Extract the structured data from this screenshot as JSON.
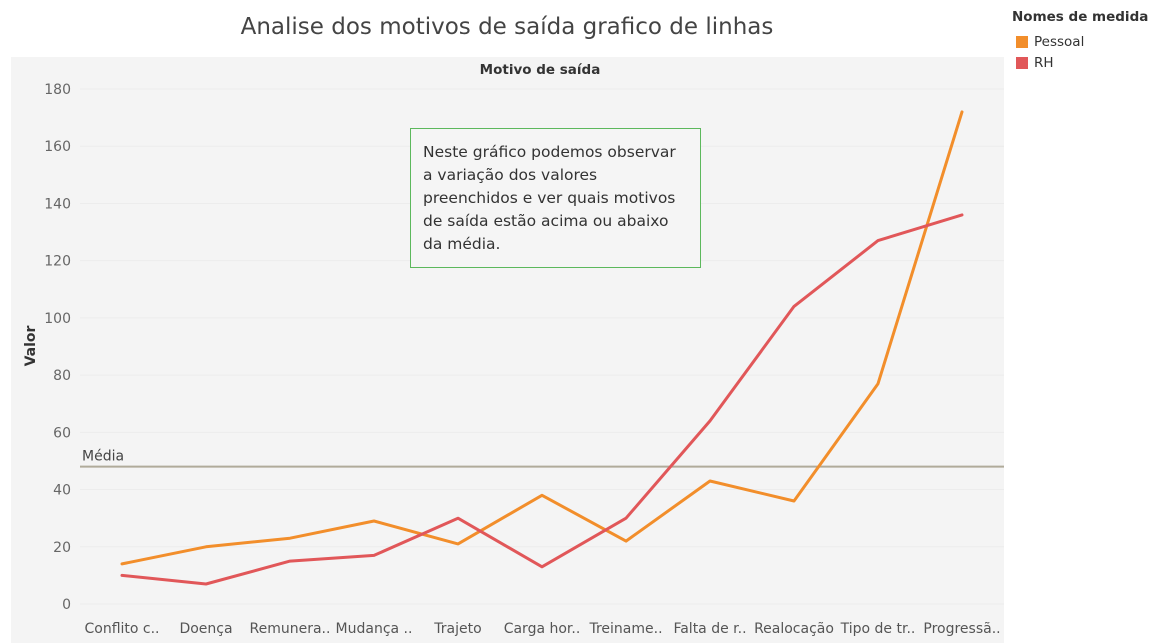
{
  "chart_data": {
    "type": "line",
    "title": "Analise dos motivos de saída grafico de linhas",
    "column_header": "Motivo de saída",
    "xlabel": "",
    "ylabel": "Valor",
    "ylim": [
      0,
      180
    ],
    "yticks": [
      0,
      20,
      40,
      60,
      80,
      100,
      120,
      140,
      160,
      180
    ],
    "categories": [
      "Conflito c..",
      "Doença",
      "Remunera..",
      "Mudança ..",
      "Trajeto",
      "Carga hor..",
      "Treiname..",
      "Falta de r..",
      "Realocação",
      "Tipo de tr..",
      "Progressã.."
    ],
    "series": [
      {
        "name": "Pessoal",
        "color": "#f28e2b",
        "values": [
          14,
          20,
          23,
          29,
          21,
          38,
          22,
          43,
          36,
          77,
          172
        ]
      },
      {
        "name": "RH",
        "color": "#e15759",
        "values": [
          10,
          7,
          15,
          17,
          30,
          13,
          30,
          64,
          104,
          127,
          136
        ]
      }
    ],
    "reference_line": {
      "label": "Média",
      "value": 48,
      "color": "#b0ab9a"
    },
    "legend": {
      "title": "Nomes de medida",
      "position": "top-right"
    },
    "annotation": "Neste gráfico podemos observar a variação dos valores preenchidos e ver quais motivos de saída  estão acima ou abaixo da média.",
    "grid": true
  }
}
